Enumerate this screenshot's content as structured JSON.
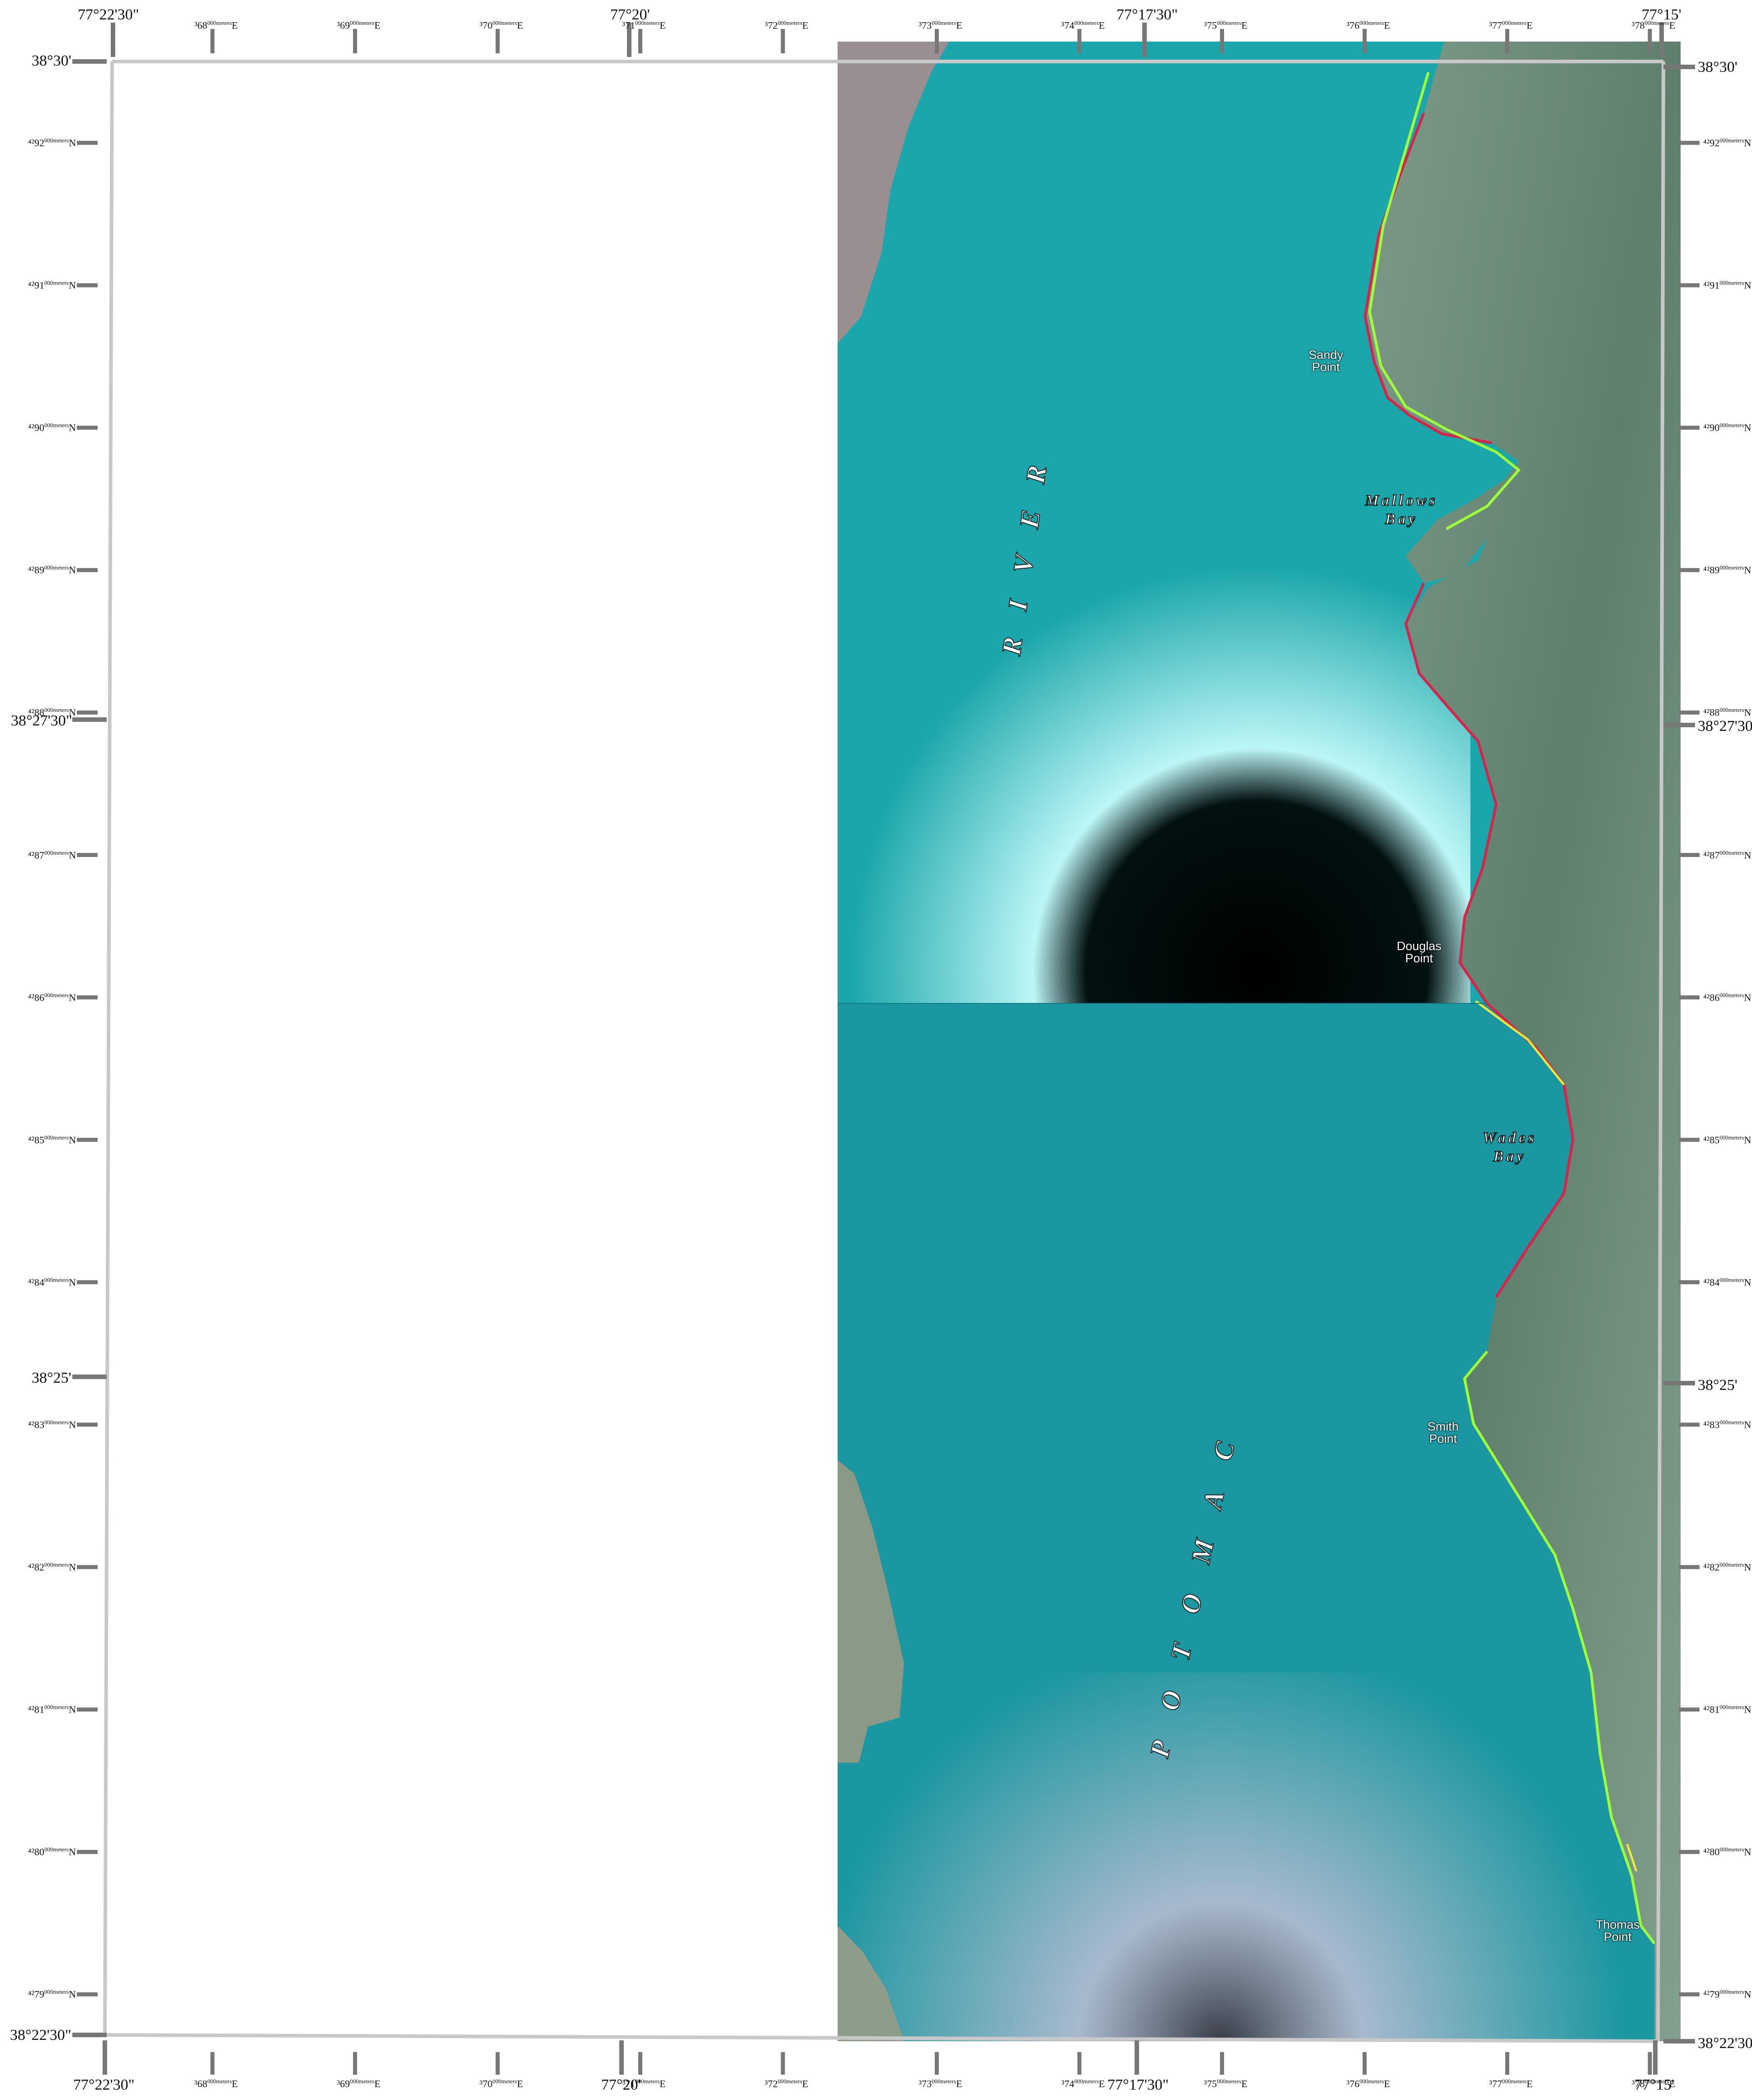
{
  "map": {
    "top_lon_labels": [
      "77°22'30\"",
      "77°20'",
      "77°17'30\"",
      "77°15'"
    ],
    "bottom_lon_labels": [
      "77°22'30\"",
      "77°20'",
      "77°17'30\"",
      "77°15'"
    ],
    "left_lat_labels": [
      "38°30'",
      "38°27'30\"",
      "38°25'",
      "38°22'30\""
    ],
    "right_lat_labels": [
      "38°30'",
      "38°27'30",
      "38°25'",
      "38°22'30"
    ],
    "utm_easting": [
      {
        "pre": "³68",
        "sup": "000meters",
        "post": "E"
      },
      {
        "pre": "³69",
        "sup": "000meters",
        "post": "E"
      },
      {
        "pre": "³70",
        "sup": "000meters",
        "post": "E"
      },
      {
        "pre": "³71",
        "sup": "000meters",
        "post": "E"
      },
      {
        "pre": "³72",
        "sup": "000meters",
        "post": "E"
      },
      {
        "pre": "³73",
        "sup": "000meters",
        "post": "E"
      },
      {
        "pre": "³74",
        "sup": "000meters",
        "post": "E"
      },
      {
        "pre": "³75",
        "sup": "000meters",
        "post": "E"
      },
      {
        "pre": "³76",
        "sup": "000meters",
        "post": "E"
      },
      {
        "pre": "³77",
        "sup": "000meters",
        "post": "E"
      },
      {
        "pre": "³78",
        "sup": "000meters",
        "post": "E"
      }
    ],
    "utm_northing": [
      {
        "pre": "⁴²92",
        "sup": "000meters",
        "post": "N"
      },
      {
        "pre": "⁴²91",
        "sup": "000meters",
        "post": "N"
      },
      {
        "pre": "⁴²90",
        "sup": "000meters",
        "post": "N"
      },
      {
        "pre": "⁴²89",
        "sup": "000meters",
        "post": "N"
      },
      {
        "pre": "⁴²88",
        "sup": "000meters",
        "post": "N"
      },
      {
        "pre": "⁴²87",
        "sup": "000meters",
        "post": "N"
      },
      {
        "pre": "⁴²86",
        "sup": "000meters",
        "post": "N"
      },
      {
        "pre": "⁴²85",
        "sup": "000meters",
        "post": "N"
      },
      {
        "pre": "⁴²84",
        "sup": "000meters",
        "post": "N"
      },
      {
        "pre": "⁴²83",
        "sup": "000meters",
        "post": "N"
      },
      {
        "pre": "⁴²82",
        "sup": "000meters",
        "post": "N"
      },
      {
        "pre": "⁴²81",
        "sup": "000meters",
        "post": "N"
      },
      {
        "pre": "⁴²80",
        "sup": "000meters",
        "post": "N"
      },
      {
        "pre": "⁴²79",
        "sup": "000meters",
        "post": "N"
      }
    ],
    "place_labels": {
      "sandy_point": [
        "Sandy",
        "Point"
      ],
      "douglas_point": [
        "Douglas",
        "Point"
      ],
      "smith_point": [
        "Smith",
        "Point"
      ],
      "thomas_point": [
        "Thomas",
        "Point"
      ]
    },
    "feature_labels": {
      "river": "RIVER",
      "potomac": "POTOMAC",
      "mallows_bay": [
        "Mallows",
        "Bay"
      ],
      "wades_bay": [
        "Wades",
        "Bay"
      ]
    },
    "colors": {
      "water": "#1aa3a8",
      "water_deep": "#148f97",
      "land": "#6f8f7d",
      "frame": "#c8c8c8",
      "tick": "#777777",
      "shoreline_green": "#9cff3a",
      "shoreline_red": "#d6244a",
      "shoreline_yellow": "#e8e83a"
    }
  }
}
